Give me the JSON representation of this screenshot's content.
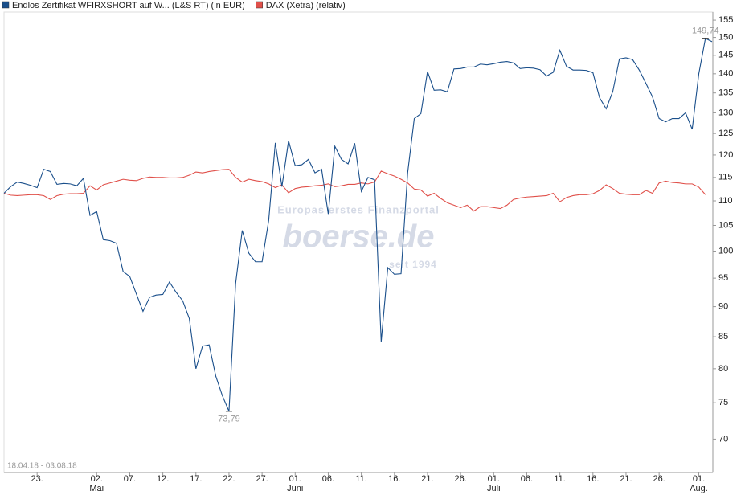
{
  "chart_data": {
    "type": "line",
    "date_range_label": "18.04.18 - 03.08.18",
    "watermark": {
      "tagline": "Europas erstes Finanzportal",
      "brand": "boerse.de",
      "since": "seit 1994"
    },
    "x": [
      "2018-04-18",
      "2018-04-19",
      "2018-04-20",
      "2018-04-21",
      "2018-04-22",
      "2018-04-23",
      "2018-04-24",
      "2018-04-25",
      "2018-04-26",
      "2018-04-27",
      "2018-04-28",
      "2018-04-29",
      "2018-04-30",
      "2018-05-01",
      "2018-05-02",
      "2018-05-03",
      "2018-05-04",
      "2018-05-05",
      "2018-05-06",
      "2018-05-07",
      "2018-05-08",
      "2018-05-09",
      "2018-05-10",
      "2018-05-11",
      "2018-05-12",
      "2018-05-13",
      "2018-05-14",
      "2018-05-15",
      "2018-05-16",
      "2018-05-17",
      "2018-05-18",
      "2018-05-19",
      "2018-05-20",
      "2018-05-21",
      "2018-05-22",
      "2018-05-23",
      "2018-05-24",
      "2018-05-25",
      "2018-05-26",
      "2018-05-27",
      "2018-05-28",
      "2018-05-29",
      "2018-05-30",
      "2018-05-31",
      "2018-06-01",
      "2018-06-02",
      "2018-06-03",
      "2018-06-04",
      "2018-06-05",
      "2018-06-06",
      "2018-06-07",
      "2018-06-08",
      "2018-06-09",
      "2018-06-10",
      "2018-06-11",
      "2018-06-12",
      "2018-06-13",
      "2018-06-14",
      "2018-06-15",
      "2018-06-16",
      "2018-06-17",
      "2018-06-18",
      "2018-06-19",
      "2018-06-20",
      "2018-06-21",
      "2018-06-22",
      "2018-06-23",
      "2018-06-24",
      "2018-06-25",
      "2018-06-26",
      "2018-06-27",
      "2018-06-28",
      "2018-06-29",
      "2018-06-30",
      "2018-07-01",
      "2018-07-02",
      "2018-07-03",
      "2018-07-04",
      "2018-07-05",
      "2018-07-06",
      "2018-07-07",
      "2018-07-08",
      "2018-07-09",
      "2018-07-10",
      "2018-07-11",
      "2018-07-12",
      "2018-07-13",
      "2018-07-14",
      "2018-07-15",
      "2018-07-16",
      "2018-07-17",
      "2018-07-18",
      "2018-07-19",
      "2018-07-20",
      "2018-07-21",
      "2018-07-22",
      "2018-07-23",
      "2018-07-24",
      "2018-07-25",
      "2018-07-26",
      "2018-07-27",
      "2018-07-28",
      "2018-07-29",
      "2018-07-30",
      "2018-07-31",
      "2018-08-01",
      "2018-08-02",
      "2018-08-03"
    ],
    "series": [
      {
        "name": "Endlos Zertifikat WFIRXSHORT auf W... (L&S RT) (in EUR)",
        "color": "#1a4f8b",
        "values": [
          111.6,
          113,
          114,
          113.7,
          113.3,
          112.8,
          116.8,
          116.3,
          113.5,
          113.7,
          113.6,
          113.2,
          114.8,
          107,
          107.8,
          102.2,
          102,
          101.5,
          96.2,
          95.3,
          92.2,
          89.2,
          91.6,
          92,
          92.1,
          94.3,
          92.5,
          91,
          88,
          80,
          83.5,
          83.7,
          78.9,
          76,
          73.79,
          94,
          104,
          99.6,
          98,
          98,
          106,
          122.8,
          113,
          123.3,
          117.6,
          117.8,
          119,
          116,
          116.8,
          107.3,
          122,
          119,
          118,
          122.7,
          112,
          115,
          114.5,
          84.2,
          96.9,
          95.7,
          95.8,
          116,
          128.6,
          129.8,
          140.6,
          135.7,
          135.8,
          135.3,
          141.3,
          141.4,
          141.8,
          141.8,
          142.6,
          142.4,
          142.7,
          143.1,
          143.3,
          142.9,
          141.4,
          141.6,
          141.5,
          141.1,
          139.4,
          140.4,
          146.4,
          142,
          141,
          141,
          140.9,
          140.3,
          133.8,
          131,
          135.4,
          144,
          144.3,
          143.8,
          141,
          137.5,
          134,
          128.6,
          127.8,
          128.6,
          128.6,
          130,
          126,
          140,
          149.74,
          148.8
        ]
      },
      {
        "name": "DAX (Xetra) (relativ)",
        "color": "#e0504a",
        "values": [
          111.6,
          111.2,
          111.1,
          111.2,
          111.3,
          111.3,
          111.1,
          110.3,
          111.1,
          111.4,
          111.5,
          111.5,
          111.6,
          113.2,
          112.3,
          113.4,
          113.8,
          114.2,
          114.6,
          114.4,
          114.3,
          114.8,
          115.1,
          115,
          115,
          114.9,
          114.9,
          115,
          115.5,
          116.2,
          116,
          116.3,
          116.5,
          116.7,
          116.8,
          115,
          114,
          114.6,
          114.3,
          114.1,
          113.6,
          112.8,
          113.4,
          111.7,
          112.6,
          112.9,
          113,
          113.2,
          113.3,
          113.6,
          113,
          113.2,
          113.5,
          113.5,
          113.8,
          113.6,
          114,
          116.4,
          115.8,
          115.3,
          114.6,
          113.8,
          112.5,
          112.3,
          111,
          111.6,
          110.5,
          109.6,
          109.1,
          108.6,
          109.1,
          107.9,
          108.8,
          108.8,
          108.6,
          108.4,
          109.1,
          110.3,
          110.6,
          110.8,
          110.9,
          111,
          111.1,
          111.6,
          109.8,
          110.7,
          111.1,
          111.3,
          111.3,
          111.5,
          112.2,
          113.4,
          112.6,
          111.6,
          111.4,
          111.3,
          111.3,
          112.2,
          111.6,
          113.8,
          114.2,
          113.9,
          113.8,
          113.6,
          113.6,
          112.9,
          111.3,
          null
        ]
      }
    ],
    "annotations": [
      {
        "x": "2018-08-02",
        "value": 149.74,
        "label": "149,74",
        "position": "above"
      },
      {
        "x": "2018-05-22",
        "value": 73.79,
        "label": "73,79",
        "position": "below"
      }
    ],
    "xlim": [
      "2018-04-18",
      "2018-08-03"
    ],
    "xticks": [
      {
        "value": "2018-04-23",
        "label": "23."
      },
      {
        "value": "2018-05-02",
        "label": "02."
      },
      {
        "value": "2018-05-07",
        "label": "07."
      },
      {
        "value": "2018-05-12",
        "label": "12."
      },
      {
        "value": "2018-05-17",
        "label": "17."
      },
      {
        "value": "2018-05-22",
        "label": "22."
      },
      {
        "value": "2018-05-27",
        "label": "27."
      },
      {
        "value": "2018-06-01",
        "label": "01."
      },
      {
        "value": "2018-06-06",
        "label": "06."
      },
      {
        "value": "2018-06-11",
        "label": "11."
      },
      {
        "value": "2018-06-16",
        "label": "16."
      },
      {
        "value": "2018-06-21",
        "label": "21."
      },
      {
        "value": "2018-06-26",
        "label": "26."
      },
      {
        "value": "2018-07-01",
        "label": "01."
      },
      {
        "value": "2018-07-06",
        "label": "06."
      },
      {
        "value": "2018-07-11",
        "label": "11."
      },
      {
        "value": "2018-07-16",
        "label": "16."
      },
      {
        "value": "2018-07-21",
        "label": "21."
      },
      {
        "value": "2018-07-26",
        "label": "26."
      },
      {
        "value": "2018-08-01",
        "label": "01."
      }
    ],
    "x_month_labels": [
      {
        "value": "2018-05-02",
        "label": "Mai"
      },
      {
        "value": "2018-06-01",
        "label": "Juni"
      },
      {
        "value": "2018-07-01",
        "label": "Juli"
      },
      {
        "value": "2018-08-01",
        "label": "Aug."
      }
    ],
    "ylim": [
      65.7,
      157.4
    ],
    "yticks": [
      70,
      75,
      80,
      85,
      90,
      95,
      100,
      105,
      110,
      115,
      120,
      125,
      130,
      135,
      140,
      145,
      150,
      155
    ],
    "log_scale": true,
    "grid": false,
    "legend": "top-left"
  }
}
